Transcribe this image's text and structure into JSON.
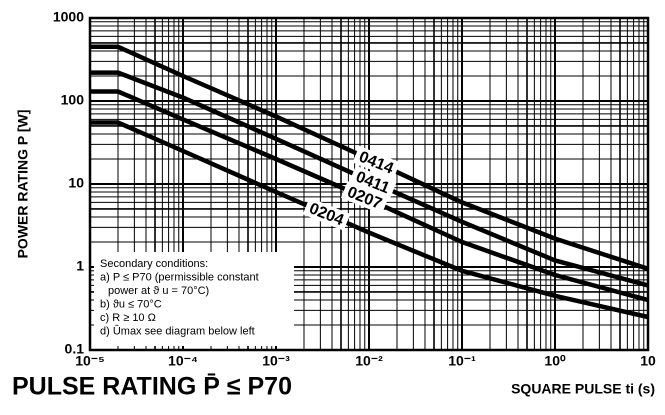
{
  "chart_data": {
    "type": "line",
    "title": "PULSE RATING P̄ ≤ P70",
    "x_label": "SQUARE PULSE ti (s)",
    "y_label": "POWER RATING P [W]",
    "x": [
      1e-05,
      2e-05,
      0.0001,
      0.001,
      0.01,
      0.1,
      1,
      10
    ],
    "series": [
      {
        "name": "0414",
        "color": "#000000",
        "values": [
          450,
          450,
          200,
          65,
          20,
          6,
          2.2,
          0.95
        ]
      },
      {
        "name": "0411",
        "color": "#000000",
        "values": [
          220,
          220,
          110,
          35,
          11,
          3.5,
          1.2,
          0.6
        ]
      },
      {
        "name": "0207",
        "color": "#000000",
        "values": [
          130,
          130,
          60,
          20,
          6.5,
          2,
          0.8,
          0.4
        ]
      },
      {
        "name": "0204",
        "color": "#000000",
        "values": [
          55,
          55,
          25,
          8,
          2.6,
          0.9,
          0.45,
          0.25
        ]
      }
    ],
    "xlim": [
      1e-05,
      10
    ],
    "ylim": [
      0.1,
      1000
    ],
    "xticks": [
      {
        "value": 1e-05,
        "label": "10⁻⁵"
      },
      {
        "value": 0.0001,
        "label": "10⁻⁴"
      },
      {
        "value": 0.001,
        "label": "10⁻³"
      },
      {
        "value": 0.01,
        "label": "10⁻²"
      },
      {
        "value": 0.1,
        "label": "10⁻¹"
      },
      {
        "value": 1,
        "label": "10⁰"
      },
      10
    ],
    "yticks": [
      0.1,
      1,
      10,
      100,
      1000
    ],
    "log_x": true,
    "log_y": true,
    "grid": true,
    "annotation": [
      "Secondary conditions:",
      "a) P ≤ P70 (permissible constant",
      "power at ϑ u = 70°C)",
      "b) ϑu ≤ 70°C",
      "c) R ≥ 10 Ω",
      "d) Ûmax see diagram below left"
    ]
  }
}
